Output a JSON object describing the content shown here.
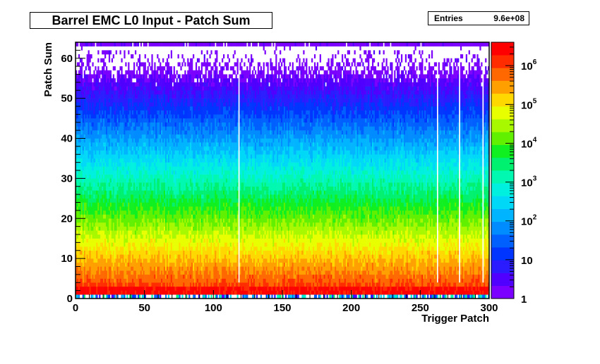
{
  "chart_data": {
    "type": "heatmap",
    "title": "Barrel EMC L0 Input - Patch Sum",
    "xlabel": "Trigger Patch",
    "ylabel": "Patch Sum",
    "xlim": [
      0,
      300
    ],
    "ylim": [
      0,
      64
    ],
    "x_ticks": [
      "0",
      "50",
      "100",
      "150",
      "200",
      "250",
      "300"
    ],
    "y_ticks": [
      "0",
      "10",
      "20",
      "30",
      "40",
      "50",
      "60"
    ],
    "z_scale": "log",
    "zlim": [
      1,
      4000000
    ],
    "colorbar_ticks": [
      {
        "value": 1,
        "base": "1",
        "exp": ""
      },
      {
        "value": 10,
        "base": "10",
        "exp": ""
      },
      {
        "value": 100,
        "base": "10",
        "exp": "2"
      },
      {
        "value": 1000,
        "base": "10",
        "exp": "3"
      },
      {
        "value": 10000,
        "base": "10",
        "exp": "4"
      },
      {
        "value": 100000,
        "base": "10",
        "exp": "5"
      },
      {
        "value": 1000000,
        "base": "10",
        "exp": "6"
      }
    ],
    "stats": {
      "label": "Entries",
      "value": "9.6e+08"
    },
    "distribution": {
      "description": "patch sum counts falling roughly exponentially from ~1e6 at sums 1-2 to ~1 near sum 60; row at sum 63 populated",
      "peak_sum": 1.5,
      "hot_strip_sums": [
        1,
        2
      ],
      "overflow_row_sum": 63,
      "dead_patch_columns": [
        118,
        262,
        278,
        295
      ]
    },
    "legend": "colorbar-right"
  },
  "colors": {
    "palette": [
      "#7b00ff",
      "#4f00ff",
      "#2a1cff",
      "#0034ff",
      "#0060ff",
      "#008cff",
      "#00b4ff",
      "#00d8f8",
      "#00f0e0",
      "#00f8b0",
      "#00f070",
      "#10f020",
      "#60f000",
      "#a8f800",
      "#e8ff00",
      "#ffd800",
      "#ffa000",
      "#ff6800",
      "#ff2c00",
      "#ff0000"
    ]
  }
}
